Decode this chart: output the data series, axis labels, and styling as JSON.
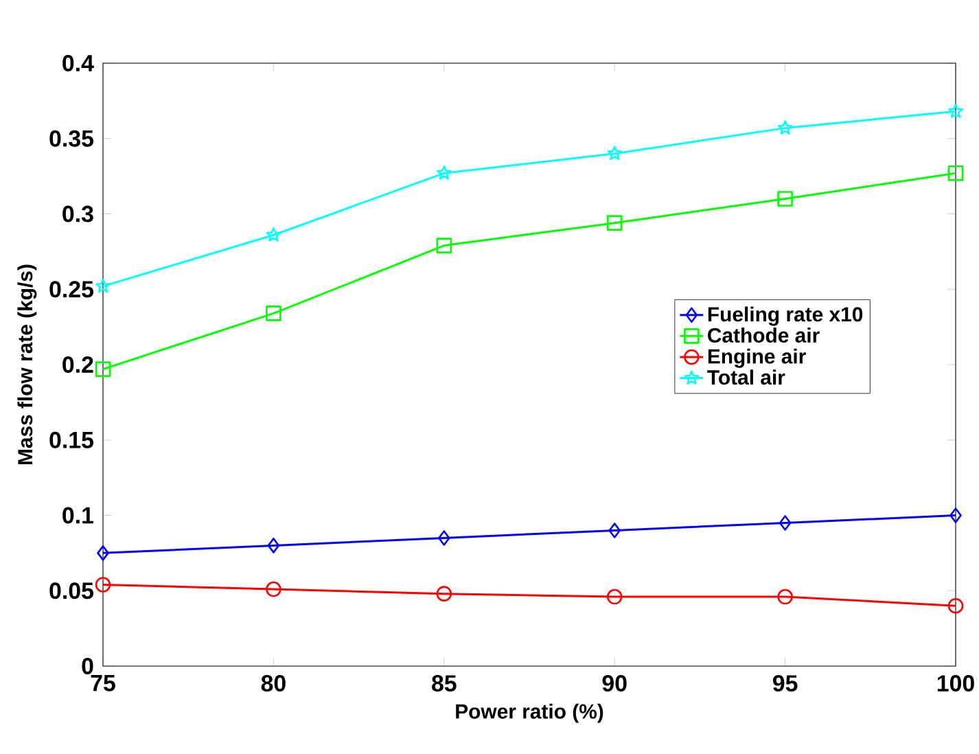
{
  "chart_data": {
    "type": "line",
    "xlabel": "Power ratio (%)",
    "ylabel": "Mass flow rate (kg/s)",
    "x": [
      75,
      80,
      85,
      90,
      95,
      100
    ],
    "series": [
      {
        "name": "Fueling rate x10",
        "color": "#0000ff",
        "marker": "diamond",
        "values": [
          0.075,
          0.08,
          0.085,
          0.09,
          0.095,
          0.1
        ]
      },
      {
        "name": "Cathode air",
        "color": "#00ff00",
        "marker": "square",
        "values": [
          0.197,
          0.234,
          0.279,
          0.294,
          0.31,
          0.327
        ]
      },
      {
        "name": "Engine air",
        "color": "#ff0000",
        "marker": "circle",
        "values": [
          0.054,
          0.051,
          0.048,
          0.046,
          0.046,
          0.04
        ]
      },
      {
        "name": "Total air",
        "color": "#00ffff",
        "marker": "star",
        "values": [
          0.252,
          0.286,
          0.327,
          0.34,
          0.357,
          0.368
        ]
      }
    ],
    "xlim": [
      75,
      100
    ],
    "ylim": [
      0,
      0.4
    ],
    "xticks": [
      75,
      80,
      85,
      90,
      95,
      100
    ],
    "yticks": [
      0,
      0.05,
      0.1,
      0.15,
      0.2,
      0.25,
      0.3,
      0.35,
      0.4
    ],
    "grid": false,
    "legend": "right",
    "line_style": "solid"
  }
}
